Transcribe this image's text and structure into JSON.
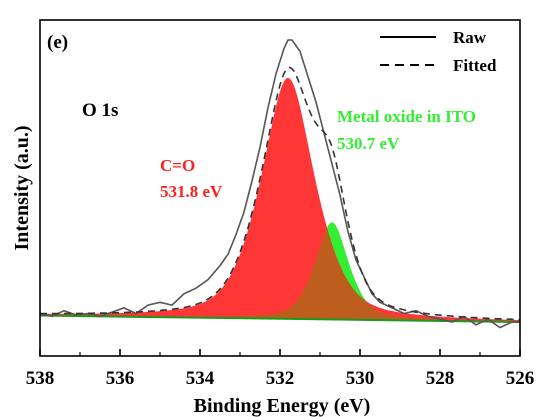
{
  "chart_data": {
    "type": "line",
    "panel_label": "(e)",
    "title": "O 1s",
    "xlabel": "Binding Energy (eV)",
    "ylabel": "Intensity (a.u.)",
    "xlim": [
      538,
      526
    ],
    "x_reversed": true,
    "ylim": [
      0,
      1.1
    ],
    "y_ticks_shown": false,
    "x_ticks": [
      538,
      536,
      534,
      532,
      530,
      528,
      526
    ],
    "grid": false,
    "legend": {
      "position": "top-right",
      "entries": [
        {
          "label": "Raw",
          "style": "solid"
        },
        {
          "label": "Fitted",
          "style": "dashed"
        }
      ]
    },
    "annotations": [
      {
        "text": "C=O",
        "color": "#ff2020"
      },
      {
        "text": "531.8 eV",
        "color": "#ff2020"
      },
      {
        "text": "Metal oxide in ITO",
        "color": "#33ee33"
      },
      {
        "text": "530.7 eV",
        "color": "#33ee33"
      }
    ],
    "peaks": [
      {
        "name": "C=O",
        "center": 531.8,
        "amplitude": 0.855,
        "sigma": 0.75,
        "gamma": 0.7,
        "eta": 0.55,
        "color": "#ff2020"
      },
      {
        "name": "Metal oxide in ITO",
        "center": 530.7,
        "amplitude": 0.345,
        "sigma": 0.45,
        "gamma": 0.45,
        "eta": 0.55,
        "color": "#33ee33"
      }
    ],
    "background": {
      "at_538": 0.023,
      "at_526": 0.0
    },
    "raw": {
      "x": [
        538.0,
        537.7,
        537.4,
        537.1,
        536.8,
        536.5,
        536.2,
        535.9,
        535.6,
        535.3,
        535.0,
        534.7,
        534.4,
        534.1,
        533.8,
        533.5,
        533.3,
        533.1,
        532.9,
        532.7,
        532.5,
        532.3,
        532.1,
        531.9,
        531.8,
        531.7,
        531.5,
        531.3,
        531.1,
        530.9,
        530.7,
        530.5,
        530.3,
        530.1,
        529.9,
        529.7,
        529.5,
        529.2,
        528.9,
        528.6,
        528.3,
        528.0,
        527.7,
        527.4,
        527.1,
        526.8,
        526.5,
        526.2,
        526.0
      ],
      "y": [
        0.03,
        0.02,
        0.04,
        0.025,
        0.03,
        0.02,
        0.035,
        0.05,
        0.03,
        0.06,
        0.07,
        0.06,
        0.1,
        0.12,
        0.15,
        0.2,
        0.24,
        0.31,
        0.39,
        0.5,
        0.62,
        0.76,
        0.88,
        0.97,
        1.0,
        1.0,
        0.96,
        0.87,
        0.78,
        0.67,
        0.56,
        0.45,
        0.32,
        0.22,
        0.16,
        0.1,
        0.07,
        0.05,
        0.03,
        0.04,
        0.02,
        0.01,
        0.0,
        0.02,
        -0.01,
        0.01,
        -0.02,
        0.0,
        0.0
      ]
    }
  }
}
